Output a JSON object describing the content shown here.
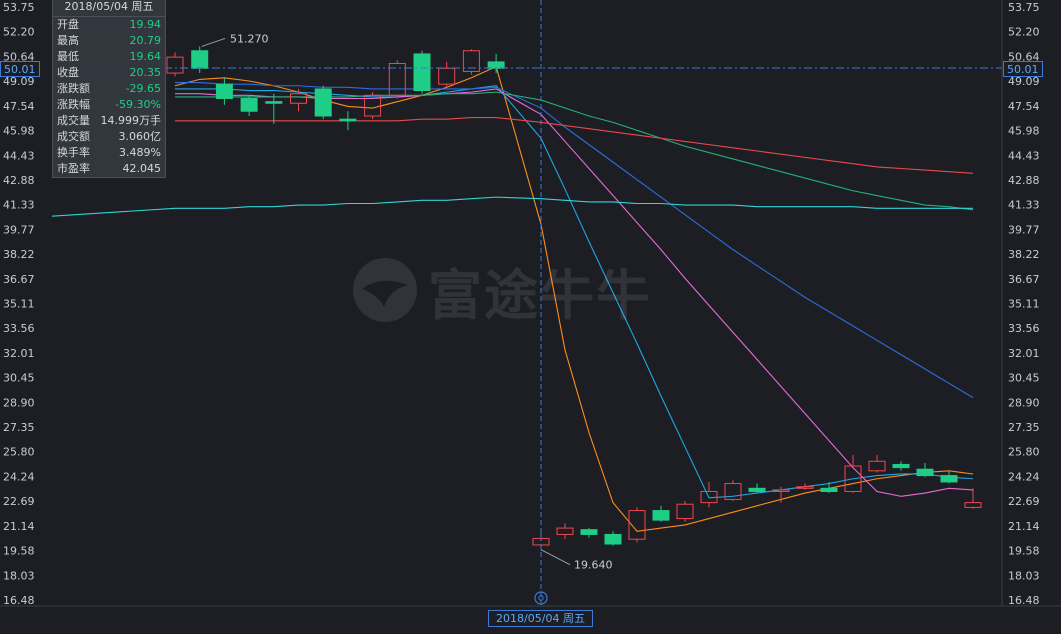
{
  "info_panel": {
    "date": "2018/05/04 周五",
    "rows": [
      {
        "label": "开盘",
        "value": "19.94",
        "color": "green"
      },
      {
        "label": "最高",
        "value": "20.79",
        "color": "green"
      },
      {
        "label": "最低",
        "value": "19.64",
        "color": "green"
      },
      {
        "label": "收盘",
        "value": "20.35",
        "color": "green"
      },
      {
        "label": "涨跌额",
        "value": "-29.65",
        "color": "green"
      },
      {
        "label": "涨跌幅",
        "value": "-59.30%",
        "color": "green"
      },
      {
        "label": "成交量",
        "value": "14.999万手",
        "color": "white"
      },
      {
        "label": "成交额",
        "value": "3.060亿",
        "color": "white"
      },
      {
        "label": "换手率",
        "value": "3.489%",
        "color": "white"
      },
      {
        "label": "市盈率",
        "value": "42.045",
        "color": "white"
      }
    ]
  },
  "crosshair": {
    "price_label": "50.01",
    "date_label": "2018/05/04 周五"
  },
  "watermark": {
    "text": "富途牛牛"
  },
  "colors": {
    "up": "#f0474d",
    "down": "#1fce86",
    "ma5": "#ff8c1a",
    "ma10": "#1fa8e6",
    "ma20": "#e86bd6",
    "ma30": "#2a6fdb",
    "ma60": "#22b07a",
    "ma120": "#e84a4a",
    "ma250": "#2ed6d6"
  },
  "chart_data": {
    "type": "candlestick",
    "y_ticks": [
      "53.75",
      "52.20",
      "50.64",
      "49.09",
      "47.54",
      "45.98",
      "44.43",
      "42.88",
      "41.33",
      "39.77",
      "38.22",
      "36.67",
      "35.11",
      "33.56",
      "32.01",
      "30.45",
      "28.90",
      "27.35",
      "25.80",
      "24.24",
      "22.69",
      "21.14",
      "19.58",
      "18.03",
      "16.48"
    ],
    "ylim": [
      16.48,
      53.75
    ],
    "annotations": [
      {
        "text": "51.270",
        "value": 51.27
      },
      {
        "text": "19.640",
        "value": 19.64
      }
    ],
    "candles": [
      {
        "o": 49.6,
        "c": 50.6,
        "h": 50.9,
        "l": 49.4
      },
      {
        "o": 51.0,
        "c": 49.9,
        "h": 51.27,
        "l": 49.6
      },
      {
        "o": 48.9,
        "c": 48.0,
        "h": 49.3,
        "l": 47.6
      },
      {
        "o": 48.0,
        "c": 47.2,
        "h": 48.2,
        "l": 46.9
      },
      {
        "o": 47.8,
        "c": 47.7,
        "h": 48.3,
        "l": 46.4
      },
      {
        "o": 47.7,
        "c": 48.3,
        "h": 48.6,
        "l": 47.2
      },
      {
        "o": 48.6,
        "c": 46.9,
        "h": 48.8,
        "l": 46.7
      },
      {
        "o": 46.7,
        "c": 46.6,
        "h": 47.2,
        "l": 46.0
      },
      {
        "o": 46.9,
        "c": 48.2,
        "h": 48.4,
        "l": 46.7
      },
      {
        "o": 48.2,
        "c": 50.2,
        "h": 50.4,
        "l": 48.0
      },
      {
        "o": 50.8,
        "c": 48.5,
        "h": 51.0,
        "l": 48.3
      },
      {
        "o": 48.9,
        "c": 49.9,
        "h": 50.3,
        "l": 48.7
      },
      {
        "o": 49.7,
        "c": 51.0,
        "h": 51.1,
        "l": 49.5
      },
      {
        "o": 50.3,
        "c": 49.9,
        "h": 50.8,
        "l": 49.6
      },
      {
        "o": 19.94,
        "c": 20.35,
        "h": 20.79,
        "l": 19.64
      },
      {
        "o": 20.6,
        "c": 21.0,
        "h": 21.3,
        "l": 20.3
      },
      {
        "o": 20.9,
        "c": 20.6,
        "h": 21.0,
        "l": 20.4
      },
      {
        "o": 20.6,
        "c": 20.0,
        "h": 20.8,
        "l": 19.9
      },
      {
        "o": 20.3,
        "c": 22.1,
        "h": 22.3,
        "l": 20.1
      },
      {
        "o": 22.1,
        "c": 21.5,
        "h": 22.4,
        "l": 21.4
      },
      {
        "o": 21.6,
        "c": 22.5,
        "h": 22.7,
        "l": 21.4
      },
      {
        "o": 22.6,
        "c": 23.3,
        "h": 23.9,
        "l": 22.3
      },
      {
        "o": 22.8,
        "c": 23.8,
        "h": 24.0,
        "l": 22.7
      },
      {
        "o": 23.5,
        "c": 23.3,
        "h": 23.8,
        "l": 23.2
      },
      {
        "o": 23.3,
        "c": 23.4,
        "h": 23.6,
        "l": 22.6
      },
      {
        "o": 23.5,
        "c": 23.6,
        "h": 23.8,
        "l": 23.4
      },
      {
        "o": 23.5,
        "c": 23.3,
        "h": 23.9,
        "l": 23.2
      },
      {
        "o": 23.3,
        "c": 24.9,
        "h": 25.6,
        "l": 23.2
      },
      {
        "o": 24.6,
        "c": 25.2,
        "h": 25.6,
        "l": 24.5
      },
      {
        "o": 25.0,
        "c": 24.8,
        "h": 25.2,
        "l": 24.6
      },
      {
        "o": 24.7,
        "c": 24.3,
        "h": 25.1,
        "l": 24.2
      },
      {
        "o": 24.3,
        "c": 23.9,
        "h": 24.6,
        "l": 23.8
      },
      {
        "o": 22.3,
        "c": 22.6,
        "h": 23.5,
        "l": 22.2
      }
    ],
    "ma_lines": [
      {
        "key": "ma5",
        "values": [
          48.8,
          49.2,
          49.3,
          49.1,
          48.8,
          48.4,
          47.9,
          47.5,
          47.4,
          47.8,
          48.2,
          48.7,
          49.3,
          50.0,
          40.1,
          32.2,
          27.0,
          22.6,
          20.8,
          21.0,
          21.2,
          21.6,
          22.0,
          22.4,
          22.8,
          23.2,
          23.5,
          23.8,
          24.1,
          24.3,
          24.5,
          24.6,
          24.4
        ]
      },
      {
        "key": "ma10",
        "values": [
          48.6,
          48.6,
          48.6,
          48.5,
          48.5,
          48.4,
          48.3,
          48.2,
          48.1,
          48.1,
          48.2,
          48.4,
          48.6,
          48.8,
          45.5,
          42.3,
          39.0,
          35.8,
          32.6,
          29.3,
          26.1,
          22.9,
          23.0,
          23.2,
          23.4,
          23.6,
          23.8,
          24.1,
          24.3,
          24.4,
          24.4,
          24.2,
          24.1
        ]
      },
      {
        "key": "ma20",
        "values": [
          48.3,
          48.3,
          48.2,
          48.2,
          48.1,
          48.1,
          48.0,
          48.0,
          48.0,
          48.1,
          48.2,
          48.3,
          48.4,
          48.6,
          47.0,
          45.3,
          43.6,
          41.9,
          40.2,
          38.5,
          36.7,
          35.0,
          33.3,
          31.6,
          29.9,
          28.2,
          26.5,
          24.8,
          23.3,
          23.0,
          23.2,
          23.5,
          23.4
        ]
      },
      {
        "key": "ma30",
        "values": [
          49.0,
          49.0,
          48.9,
          48.9,
          48.8,
          48.8,
          48.7,
          48.7,
          48.6,
          48.6,
          48.6,
          48.6,
          48.6,
          48.7,
          47.4,
          46.2,
          45.1,
          44.0,
          42.9,
          41.8,
          40.7,
          39.6,
          38.5,
          37.5,
          36.5,
          35.5,
          34.6,
          33.7,
          32.8,
          31.9,
          31.0,
          30.1,
          29.2
        ]
      },
      {
        "key": "ma60",
        "values": [
          48.1,
          48.1,
          48.1,
          48.1,
          48.1,
          48.1,
          48.1,
          48.1,
          48.2,
          48.2,
          48.2,
          48.3,
          48.3,
          48.4,
          47.9,
          47.4,
          46.9,
          46.5,
          46.0,
          45.5,
          45.0,
          44.6,
          44.2,
          43.8,
          43.4,
          43.0,
          42.6,
          42.2,
          41.9,
          41.6,
          41.3,
          41.2,
          41.0
        ]
      },
      {
        "key": "ma120",
        "values": [
          46.6,
          46.6,
          46.6,
          46.6,
          46.6,
          46.6,
          46.6,
          46.6,
          46.6,
          46.6,
          46.7,
          46.7,
          46.8,
          46.8,
          46.5,
          46.3,
          46.1,
          45.9,
          45.7,
          45.5,
          45.3,
          45.1,
          44.9,
          44.7,
          44.5,
          44.3,
          44.1,
          43.9,
          43.7,
          43.6,
          43.5,
          43.4,
          43.3
        ]
      },
      {
        "key": "ma250",
        "values": [
          41.1,
          41.1,
          41.1,
          41.2,
          41.2,
          41.3,
          41.3,
          41.4,
          41.4,
          41.5,
          41.6,
          41.6,
          41.7,
          41.8,
          41.7,
          41.6,
          41.5,
          41.5,
          41.4,
          41.4,
          41.3,
          41.3,
          41.3,
          41.2,
          41.2,
          41.2,
          41.2,
          41.2,
          41.1,
          41.1,
          41.1,
          41.1,
          41.1
        ]
      }
    ]
  }
}
